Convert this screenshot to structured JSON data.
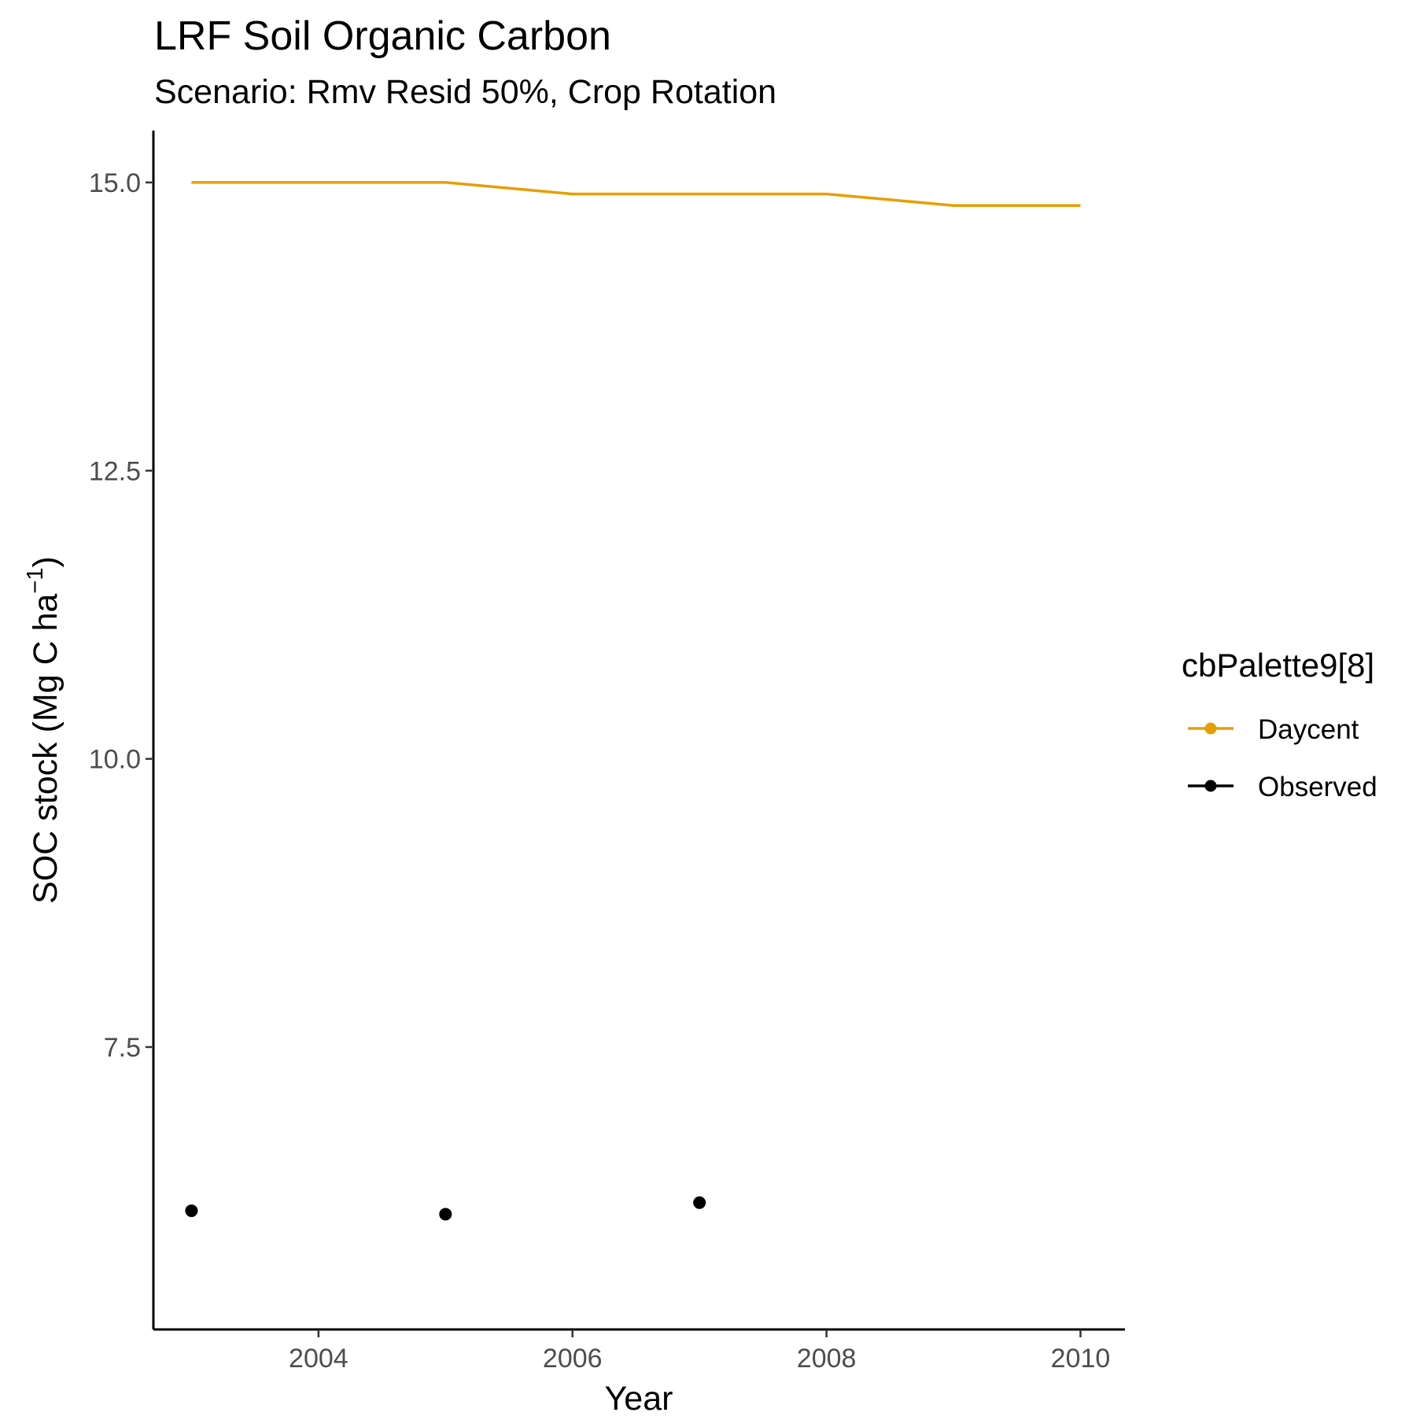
{
  "chart_data": {
    "type": "line",
    "title": "LRF Soil Organic Carbon",
    "subtitle": "Scenario: Rmv Resid 50%, Crop Rotation",
    "xlabel": "Year",
    "ylabel": "SOC stock (Mg C ha",
    "ylabel_superscript": "−1",
    "ylabel_close": ")",
    "xlim": [
      2002.7,
      2010.35
    ],
    "ylim": [
      5.05,
      15.45
    ],
    "x_ticks": [
      2004,
      2006,
      2008,
      2010
    ],
    "x_tick_labels": [
      "2004",
      "2006",
      "2008",
      "2010"
    ],
    "y_ticks": [
      7.5,
      10.0,
      12.5,
      15.0
    ],
    "y_tick_labels": [
      "7.5",
      "10.0",
      "12.5",
      "15.0"
    ],
    "grid": false,
    "legend": {
      "title": "cbPalette9[8]",
      "position": "right",
      "entries": [
        {
          "label": "Daycent",
          "color": "#E69F00"
        },
        {
          "label": "Observed",
          "color": "#000000"
        }
      ]
    },
    "series": [
      {
        "name": "Daycent",
        "kind": "line",
        "color": "#E69F00",
        "x": [
          2003,
          2004,
          2005,
          2006,
          2007,
          2008,
          2009,
          2010
        ],
        "y": [
          15.0,
          15.0,
          15.0,
          14.9,
          14.9,
          14.9,
          14.8,
          14.8
        ]
      },
      {
        "name": "Observed",
        "kind": "points",
        "color": "#000000",
        "x": [
          2003,
          2005,
          2007
        ],
        "y": [
          6.08,
          6.05,
          6.15
        ]
      }
    ]
  }
}
